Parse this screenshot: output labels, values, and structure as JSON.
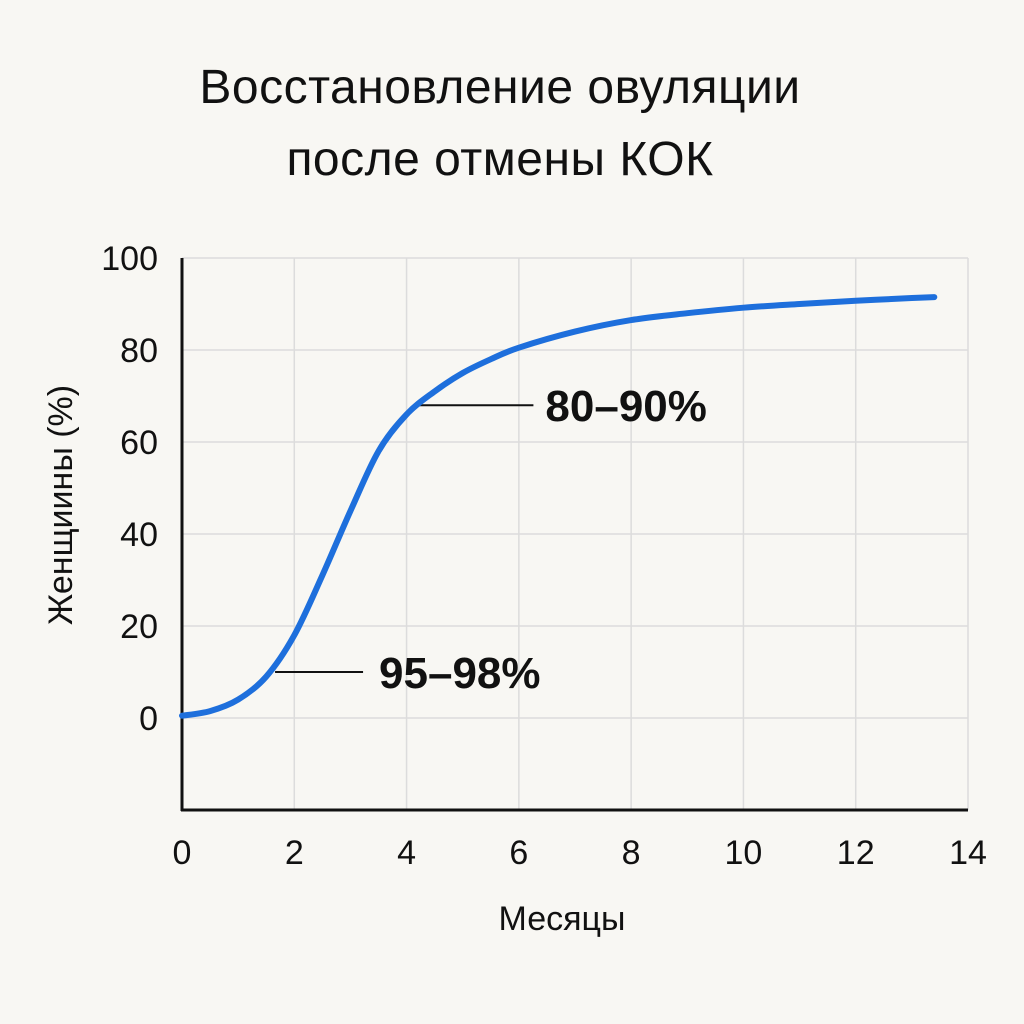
{
  "chart_data": {
    "type": "line",
    "title_lines": [
      "Восстановление овуляции",
      "после отмены КОК"
    ],
    "xlabel": "Месяцы",
    "ylabel": "Женщиины (%)",
    "xlim": [
      0,
      14
    ],
    "ylim": [
      -20,
      100
    ],
    "x_ticks": [
      0,
      2,
      4,
      6,
      8,
      10,
      12,
      14
    ],
    "y_ticks": [
      0,
      20,
      40,
      60,
      80,
      100
    ],
    "grid": true,
    "line_color": "#1e6fdc",
    "series": [
      {
        "x": [
          0,
          0.5,
          1,
          1.5,
          2,
          2.5,
          3,
          3.5,
          4,
          4.5,
          5,
          5.5,
          6,
          7,
          8,
          9,
          10,
          11,
          12,
          13,
          13.4
        ],
        "y": [
          0.5,
          1.5,
          4,
          9,
          18,
          31,
          45,
          58,
          66,
          71,
          75,
          78,
          80.5,
          84,
          86.5,
          88,
          89.2,
          90,
          90.7,
          91.3,
          91.5
        ]
      }
    ],
    "annotations": [
      {
        "text": "80–90%",
        "x": 4.3,
        "y": 68
      },
      {
        "text": "95–98%",
        "x": 1.8,
        "y": 10
      }
    ]
  }
}
